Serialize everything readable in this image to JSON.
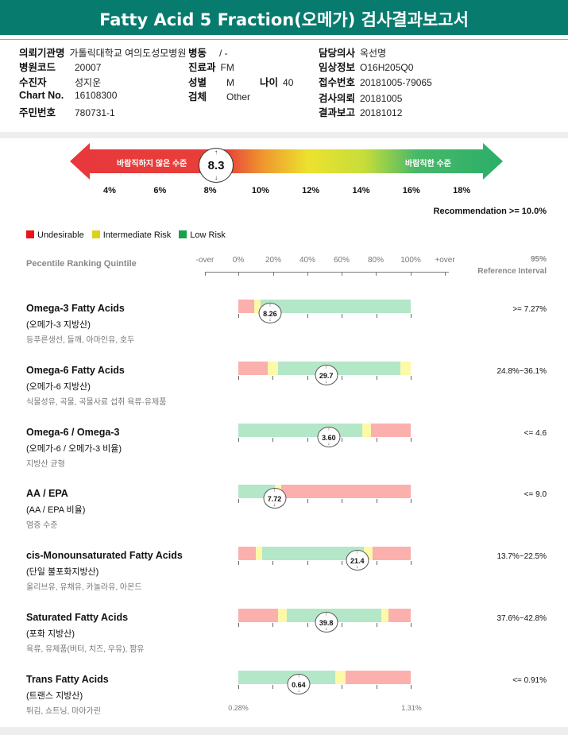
{
  "title": "Fatty Acid 5 Fraction(오메가) 검사결과보고서",
  "info": {
    "institution": {
      "label": "의뢰기관명",
      "value": "가톨릭대학교 여의도성모병원"
    },
    "ward": {
      "label": "병동",
      "value": "/ -"
    },
    "doctor": {
      "label": "담당의사",
      "value": "옥선명"
    },
    "hospital_code": {
      "label": "병원코드",
      "value": "20007"
    },
    "department": {
      "label": "진료과",
      "value": "FM"
    },
    "clinical_info": {
      "label": "임상정보",
      "value": "O16H205Q0"
    },
    "patient": {
      "label": "수진자",
      "value": "성지운"
    },
    "sex": {
      "label": "성별",
      "value": "M"
    },
    "age": {
      "label": "나이",
      "value": "40"
    },
    "receipt_no": {
      "label": "접수번호",
      "value": "20181005-79065"
    },
    "chart_no": {
      "label": "Chart No.",
      "value": "16108300"
    },
    "specimen": {
      "label": "검체",
      "value": "Other"
    },
    "request_date": {
      "label": "검사의뢰",
      "value": "20181005"
    },
    "id_no": {
      "label": "주민번호",
      "value": "780731-1"
    },
    "report_date": {
      "label": "결과보고",
      "value": "20181012"
    }
  },
  "index": {
    "value": 8.3,
    "value_label": "8.3",
    "bad_label": "바람직하지 않은 수준",
    "good_label": "바람직한 수준",
    "scale": [
      "4%",
      "6%",
      "8%",
      "10%",
      "12%",
      "14%",
      "16%",
      "18%"
    ],
    "recommendation": "Recommendation  >= 10.0%"
  },
  "legend": [
    {
      "label": "Undesirable",
      "color": "#e8141b"
    },
    {
      "label": "Intermediate Risk",
      "color": "#dcd21a"
    },
    {
      "label": "Low Risk",
      "color": "#18a04c"
    }
  ],
  "percentile": {
    "title": "Pecentile Ranking Quintile",
    "axis": [
      "-over",
      "0%",
      "20%",
      "40%",
      "60%",
      "80%",
      "100%",
      "+over"
    ],
    "ref_header1": "95%",
    "ref_header2": "Reference Interval"
  },
  "colors": {
    "red": "#fbb0ae",
    "yellow": "#fcf9a8",
    "green": "#b4e6c8"
  },
  "rows": [
    {
      "name": "Omega-3 Fatty Acids",
      "ko": "(오메가-3 지방산)",
      "foods": "등푸른생선, 들깨, 아마인유, 호두",
      "ref": ">= 7.27%",
      "value": "8.26",
      "marker_pct": 18.4,
      "segments": [
        [
          "red",
          9
        ],
        [
          "yellow",
          4
        ],
        [
          "green",
          87
        ]
      ]
    },
    {
      "name": "Omega-6 Fatty Acids",
      "ko": "(오메가-6 지방산)",
      "foods": "식물성유, 곡물, 곡물사료 섭취 육류·유제품",
      "ref": "24.8%~36.1%",
      "value": "29.7",
      "marker_pct": 51,
      "segments": [
        [
          "red",
          17
        ],
        [
          "yellow",
          6
        ],
        [
          "green",
          71
        ],
        [
          "yellow",
          6
        ]
      ]
    },
    {
      "name": "Omega-6 / Omega-3",
      "ko": "(오메가-6 / 오메가-3 비율)",
      "foods": "지방산 균형",
      "ref": "<= 4.6",
      "value": "3.60",
      "marker_pct": 52.5,
      "segments": [
        [
          "green",
          72
        ],
        [
          "yellow",
          5
        ],
        [
          "red",
          23
        ]
      ]
    },
    {
      "name": "AA / EPA",
      "ko": "(AA / EPA 비율)",
      "foods": "염증 수준",
      "ref": "<= 9.0",
      "value": "7.72",
      "marker_pct": 21,
      "segments": [
        [
          "green",
          21
        ],
        [
          "yellow",
          4
        ],
        [
          "red",
          75
        ]
      ]
    },
    {
      "name": "cis-Monounsaturated Fatty Acids",
      "ko": "(단일 불포화지방산)",
      "foods": "올리브유, 유채유, 카놀라유, 아몬드",
      "ref": "13.7%~22.5%",
      "value": "21.4",
      "marker_pct": 69,
      "segments": [
        [
          "red",
          10
        ],
        [
          "yellow",
          4
        ],
        [
          "green",
          59
        ],
        [
          "yellow",
          5
        ],
        [
          "red",
          22
        ]
      ]
    },
    {
      "name": "Saturated Fatty Acids",
      "ko": "(포화 지방산)",
      "foods": "육류, 유제품(버터, 치즈, 우유), 팜유",
      "ref": "37.6%~42.8%",
      "value": "39.8",
      "marker_pct": 51,
      "segments": [
        [
          "red",
          23
        ],
        [
          "yellow",
          5
        ],
        [
          "green",
          55
        ],
        [
          "yellow",
          4
        ],
        [
          "red",
          13
        ]
      ]
    },
    {
      "name": "Trans Fatty Acids",
      "ko": "(트랜스 지방산)",
      "foods": "튀김, 쇼트닝, 마아가린",
      "ref": "<= 0.91%",
      "value": "0.64",
      "marker_pct": 35,
      "segments": [
        [
          "green",
          56
        ],
        [
          "yellow",
          6
        ],
        [
          "red",
          38
        ]
      ]
    }
  ],
  "trans_range": {
    "min": "0.28%",
    "max": "1.31%"
  }
}
